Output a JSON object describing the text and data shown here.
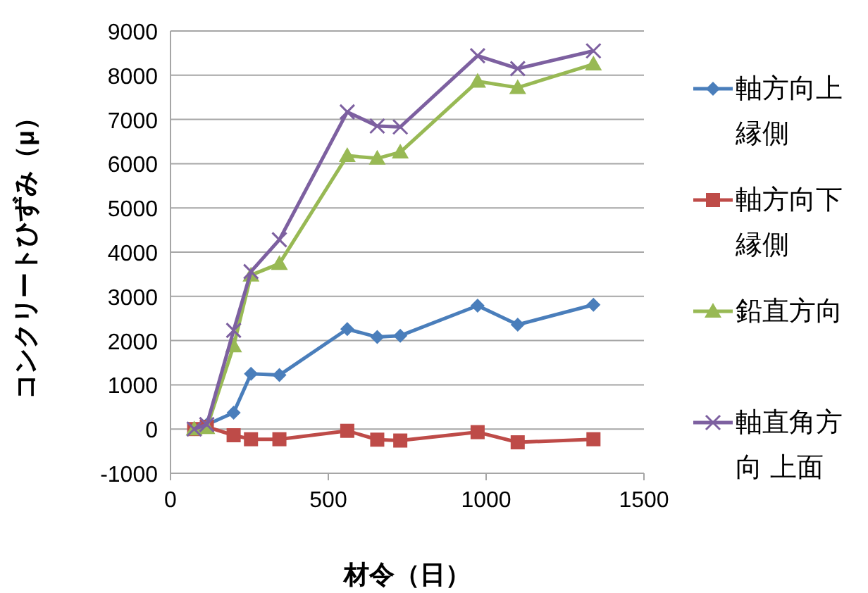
{
  "chart_data": {
    "type": "line",
    "xlabel": "材令（日）",
    "ylabel": "コンクリートひずみ（μ）",
    "x": [
      75,
      115,
      200,
      255,
      345,
      560,
      655,
      728,
      973,
      1100,
      1340
    ],
    "xlim": [
      0,
      1500
    ],
    "xticks": [
      0,
      500,
      1000,
      1500
    ],
    "ylim": [
      -1000,
      9000
    ],
    "yticks": [
      -1000,
      0,
      1000,
      2000,
      3000,
      4000,
      5000,
      6000,
      7000,
      8000,
      9000
    ],
    "grid": "y",
    "legend": "right",
    "series": [
      {
        "name": "軸方向上縁側",
        "color": "#4a7ebb",
        "marker": "diamond",
        "values": [
          0,
          100,
          370,
          1250,
          1220,
          2260,
          2080,
          2110,
          2790,
          2360,
          2810
        ]
      },
      {
        "name": "軸方向下縁側",
        "color": "#be4b48",
        "marker": "square",
        "values": [
          0,
          50,
          -140,
          -230,
          -230,
          -40,
          -240,
          -260,
          -70,
          -300,
          -230
        ]
      },
      {
        "name": "鉛直方向",
        "color": "#98b954",
        "marker": "triangle",
        "values": [
          0,
          30,
          1880,
          3480,
          3740,
          6180,
          6120,
          6260,
          7860,
          7720,
          8250
        ]
      },
      {
        "name": "軸直角方向 上面",
        "color": "#7d60a0",
        "marker": "cross",
        "values": [
          0,
          100,
          2230,
          3560,
          4280,
          7170,
          6850,
          6830,
          8440,
          8150,
          8550
        ]
      }
    ]
  }
}
